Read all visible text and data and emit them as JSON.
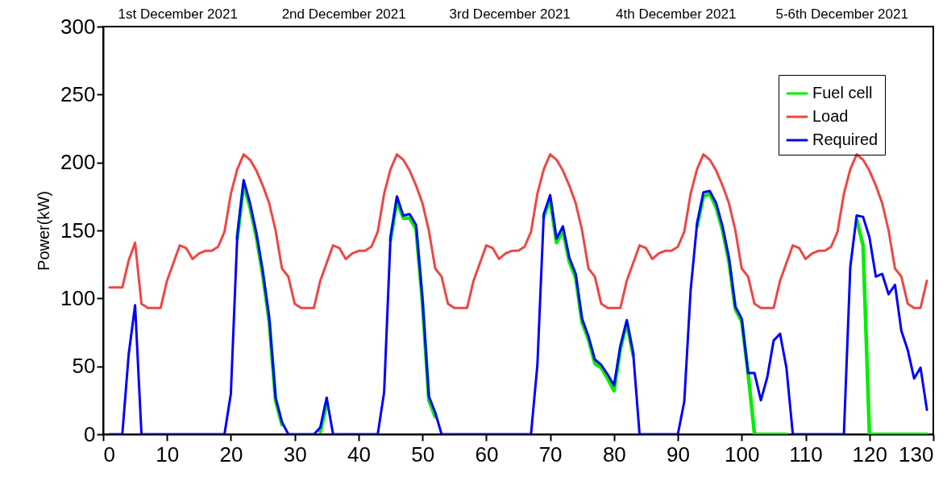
{
  "chart_data": {
    "type": "line",
    "ylabel": "Power(kW)",
    "x": [
      1,
      2,
      3,
      4,
      5,
      6,
      7,
      8,
      9,
      10,
      11,
      12,
      13,
      14,
      15,
      16,
      17,
      18,
      19,
      20,
      21,
      22,
      23,
      24,
      25,
      26,
      27,
      28,
      29,
      30,
      31,
      32,
      33,
      34,
      35,
      36,
      37,
      38,
      39,
      40,
      41,
      42,
      43,
      44,
      45,
      46,
      47,
      48,
      49,
      50,
      51,
      52,
      53,
      54,
      55,
      56,
      57,
      58,
      59,
      60,
      61,
      62,
      63,
      64,
      65,
      66,
      67,
      68,
      69,
      70,
      71,
      72,
      73,
      74,
      75,
      76,
      77,
      78,
      79,
      80,
      81,
      82,
      83,
      84,
      85,
      86,
      87,
      88,
      89,
      90,
      91,
      92,
      93,
      94,
      95,
      96,
      97,
      98,
      99,
      100,
      101,
      102,
      103,
      104,
      105,
      106,
      107,
      108,
      109,
      110,
      111,
      112,
      113,
      114,
      115,
      116,
      117,
      118,
      119,
      120,
      121,
      122,
      123,
      124,
      125,
      126,
      127,
      128,
      129
    ],
    "series": [
      {
        "name": "Fuel cell",
        "color": "#00ee00",
        "values": [
          null,
          null,
          null,
          null,
          null,
          null,
          null,
          null,
          null,
          null,
          null,
          null,
          null,
          null,
          null,
          null,
          null,
          null,
          null,
          null,
          144,
          184,
          167,
          145,
          117,
          83,
          25,
          7,
          null,
          null,
          null,
          null,
          null,
          2,
          22,
          null,
          null,
          null,
          null,
          null,
          null,
          null,
          null,
          null,
          143,
          172,
          159,
          159,
          151,
          97,
          25,
          13,
          null,
          null,
          null,
          null,
          null,
          null,
          null,
          null,
          null,
          null,
          null,
          null,
          null,
          null,
          null,
          null,
          160,
          173,
          141,
          150,
          127,
          115,
          82,
          70,
          52,
          49,
          41,
          32,
          63,
          82,
          58,
          null,
          null,
          null,
          null,
          null,
          null,
          null,
          null,
          null,
          153,
          175,
          177,
          167,
          150,
          127,
          92,
          83,
          45,
          0,
          0,
          0,
          0,
          0,
          0,
          null,
          null,
          null,
          null,
          null,
          null,
          null,
          null,
          null,
          null,
          158,
          139,
          0,
          0,
          0,
          0,
          0,
          0,
          0,
          0,
          0,
          0
        ]
      },
      {
        "name": "Load",
        "color": "#f04545",
        "values": [
          108,
          108,
          108,
          128,
          141,
          96,
          93,
          93,
          93,
          113,
          126,
          139,
          137,
          129,
          133,
          135,
          135,
          138,
          149,
          177,
          195,
          206,
          202,
          194,
          183,
          170,
          150,
          122,
          116,
          96,
          93,
          93,
          93,
          113,
          126,
          139,
          137,
          129,
          133,
          135,
          135,
          138,
          149,
          177,
          195,
          206,
          202,
          194,
          183,
          170,
          150,
          122,
          116,
          96,
          93,
          93,
          93,
          113,
          126,
          139,
          137,
          129,
          133,
          135,
          135,
          138,
          149,
          177,
          195,
          206,
          202,
          194,
          183,
          170,
          150,
          122,
          116,
          96,
          93,
          93,
          93,
          113,
          126,
          139,
          137,
          129,
          133,
          135,
          135,
          138,
          149,
          177,
          195,
          206,
          202,
          194,
          183,
          170,
          150,
          122,
          116,
          96,
          93,
          93,
          93,
          113,
          126,
          139,
          137,
          129,
          133,
          135,
          135,
          138,
          149,
          177,
          195,
          206,
          202,
          194,
          183,
          170,
          150,
          122,
          116,
          96,
          93,
          93,
          113
        ]
      },
      {
        "name": "Required",
        "color": "#0000ff",
        "values": [
          0,
          0,
          0,
          59,
          95,
          0,
          0,
          0,
          0,
          0,
          0,
          0,
          0,
          0,
          0,
          0,
          0,
          0,
          0,
          30,
          146,
          187,
          170,
          148,
          120,
          86,
          27,
          9,
          0,
          0,
          0,
          0,
          0,
          5,
          27,
          0,
          0,
          0,
          0,
          0,
          0,
          0,
          0,
          31,
          145,
          175,
          161,
          162,
          154,
          100,
          28,
          16,
          0,
          0,
          0,
          0,
          0,
          0,
          0,
          0,
          0,
          0,
          0,
          0,
          0,
          0,
          0,
          51,
          162,
          176,
          144,
          153,
          130,
          118,
          85,
          72,
          55,
          51,
          44,
          36,
          65,
          84,
          60,
          0,
          0,
          0,
          0,
          0,
          0,
          0,
          24,
          106,
          155,
          178,
          179,
          170,
          153,
          130,
          94,
          85,
          45,
          45,
          25,
          42,
          69,
          74,
          49,
          0,
          0,
          0,
          0,
          0,
          0,
          0,
          0,
          0,
          123,
          161,
          160,
          145,
          116,
          118,
          103,
          110,
          76,
          62,
          41,
          49,
          18
        ]
      }
    ],
    "xlim": [
      0,
      130
    ],
    "xticks": [
      0,
      10,
      20,
      30,
      40,
      50,
      60,
      70,
      80,
      90,
      100,
      110,
      120,
      130
    ],
    "ylim": [
      0,
      300
    ],
    "yticks": [
      0,
      50,
      100,
      150,
      200,
      250,
      300
    ],
    "legend": "top right",
    "grid": false,
    "marker": "none",
    "line_style": "solid",
    "annotations": [
      "1st December 2021",
      "2nd December 2021",
      "3rd December 2021",
      "4th December 2021",
      "5-6th December 2021"
    ]
  }
}
